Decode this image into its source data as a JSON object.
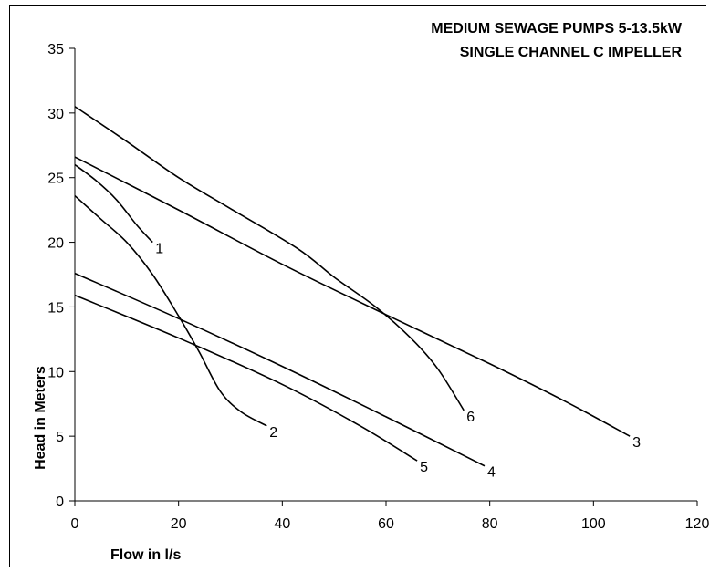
{
  "chart_data": {
    "type": "line",
    "title_lines": [
      "MEDIUM SEWAGE PUMPS 5-13.5kW",
      "SINGLE CHANNEL C IMPELLER"
    ],
    "xlabel": "Flow in l/s",
    "ylabel": "Head in Meters",
    "xlim": [
      0,
      120
    ],
    "ylim": [
      0,
      35
    ],
    "x_ticks": [
      "0",
      "20",
      "40",
      "60",
      "80",
      "100",
      "120"
    ],
    "y_ticks": [
      "0",
      "5",
      "10",
      "15",
      "20",
      "25",
      "30",
      "35"
    ],
    "grid": false,
    "series": [
      {
        "name": "1",
        "points": [
          [
            0,
            26
          ],
          [
            4,
            24.8
          ],
          [
            8,
            23.3
          ],
          [
            12,
            21.3
          ],
          [
            15,
            20
          ]
        ]
      },
      {
        "name": "2",
        "points": [
          [
            0,
            23.6
          ],
          [
            5,
            21.8
          ],
          [
            10,
            20
          ],
          [
            15,
            17.5
          ],
          [
            20,
            14.3
          ],
          [
            24,
            11.5
          ],
          [
            28,
            8.5
          ],
          [
            32,
            6.9
          ],
          [
            37,
            5.8
          ]
        ]
      },
      {
        "name": "3",
        "points": [
          [
            0,
            26.6
          ],
          [
            20,
            22.5
          ],
          [
            40,
            18.3
          ],
          [
            60,
            14.4
          ],
          [
            80,
            10.6
          ],
          [
            95,
            7.6
          ],
          [
            107,
            5
          ]
        ]
      },
      {
        "name": "4",
        "points": [
          [
            0,
            17.6
          ],
          [
            20,
            14.1
          ],
          [
            40,
            10.4
          ],
          [
            60,
            6.5
          ],
          [
            79,
            2.7
          ]
        ]
      },
      {
        "name": "5",
        "points": [
          [
            0,
            15.9
          ],
          [
            20,
            12.6
          ],
          [
            40,
            9
          ],
          [
            55,
            5.8
          ],
          [
            66,
            3.1
          ]
        ]
      },
      {
        "name": "6",
        "points": [
          [
            0,
            30.5
          ],
          [
            10,
            27.8
          ],
          [
            20,
            25
          ],
          [
            30,
            22.6
          ],
          [
            43,
            19.5
          ],
          [
            50,
            17.3
          ],
          [
            58,
            15
          ],
          [
            65,
            12.5
          ],
          [
            70,
            10.2
          ],
          [
            75,
            7
          ]
        ]
      }
    ]
  }
}
